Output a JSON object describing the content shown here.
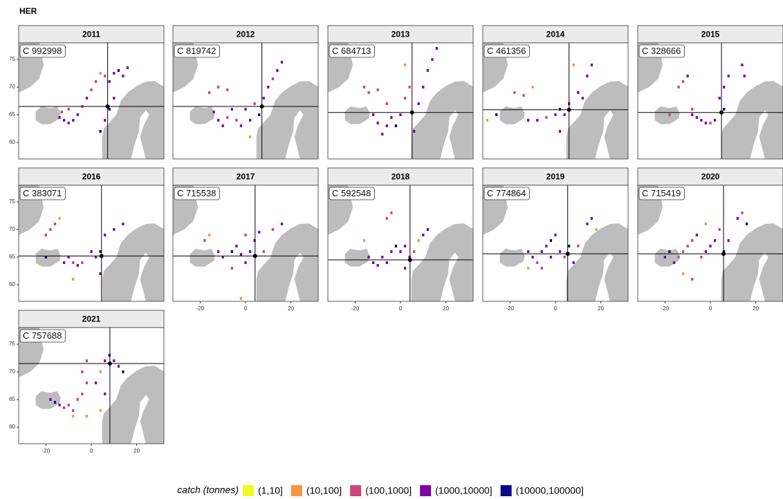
{
  "chart_data": {
    "type": "facet_map",
    "title": "HER",
    "xlim": [
      -32,
      32
    ],
    "ylim": [
      57,
      78
    ],
    "xticks": [
      -20,
      0,
      20
    ],
    "yticks": [
      60,
      65,
      70,
      75
    ],
    "legend": {
      "title": "catch (tonnes)",
      "levels": [
        {
          "label": "(1,10]",
          "color": "#f0f921"
        },
        {
          "label": "(10,100]",
          "color": "#f89540"
        },
        {
          "label": "(100,1000]",
          "color": "#cc4778"
        },
        {
          "label": "(1000,10000]",
          "color": "#7e03a8"
        },
        {
          "label": "(10000,100000]",
          "color": "#0d0887"
        }
      ]
    },
    "panels": [
      {
        "year": "2011",
        "label": "C 992998",
        "center": [
          7.2,
          66.5
        ],
        "cells": [
          [
            -14,
            64.5,
            3
          ],
          [
            -12,
            64,
            3
          ],
          [
            -10,
            63.5,
            3
          ],
          [
            -13,
            65.5,
            2
          ],
          [
            -8,
            64,
            3
          ],
          [
            -6,
            65,
            3
          ],
          [
            -4,
            66.5,
            2
          ],
          [
            -2,
            68,
            3
          ],
          [
            0,
            69.5,
            2
          ],
          [
            2,
            71,
            2
          ],
          [
            4,
            72.5,
            1
          ],
          [
            6,
            72,
            2
          ],
          [
            8,
            71,
            3
          ],
          [
            10,
            72.5,
            3
          ],
          [
            12,
            73,
            4
          ],
          [
            14,
            72,
            3
          ],
          [
            16,
            73.5,
            3
          ],
          [
            8,
            66,
            4
          ],
          [
            6,
            64,
            3
          ],
          [
            10,
            68,
            3
          ],
          [
            4,
            62,
            4
          ],
          [
            -10,
            66,
            2
          ]
        ]
      },
      {
        "year": "2012",
        "label": "C 819742",
        "center": [
          7.2,
          66.5
        ],
        "cells": [
          [
            -12,
            64,
            3
          ],
          [
            -10,
            63,
            3
          ],
          [
            -8,
            64.5,
            2
          ],
          [
            -14,
            65.5,
            3
          ],
          [
            -6,
            66,
            3
          ],
          [
            -4,
            64,
            2
          ],
          [
            -2,
            63,
            3
          ],
          [
            -16,
            69,
            2
          ],
          [
            -12,
            70,
            2
          ],
          [
            -8,
            69.5,
            2
          ],
          [
            0,
            66,
            3
          ],
          [
            2,
            64,
            3
          ],
          [
            4,
            67,
            2
          ],
          [
            8,
            68,
            3
          ],
          [
            10,
            70,
            3
          ],
          [
            14,
            73,
            3
          ],
          [
            16,
            74.5,
            3
          ],
          [
            12,
            71.5,
            2
          ],
          [
            6,
            65,
            4
          ],
          [
            2,
            61,
            1
          ]
        ]
      },
      {
        "year": "2013",
        "label": "C 684713",
        "center": [
          5.1,
          65.4
        ],
        "cells": [
          [
            -16,
            70,
            2
          ],
          [
            -14,
            69,
            2
          ],
          [
            -10,
            69.5,
            2
          ],
          [
            -12,
            65,
            3
          ],
          [
            -10,
            63.5,
            3
          ],
          [
            -6,
            63,
            3
          ],
          [
            -4,
            64.5,
            3
          ],
          [
            -2,
            63,
            4
          ],
          [
            0,
            65,
            3
          ],
          [
            -6,
            67,
            2
          ],
          [
            2,
            68,
            2
          ],
          [
            4,
            70,
            2
          ],
          [
            8,
            67,
            3
          ],
          [
            10,
            70,
            3
          ],
          [
            12,
            73,
            3
          ],
          [
            14,
            75,
            3
          ],
          [
            16,
            77,
            3
          ],
          [
            6,
            62,
            3
          ],
          [
            -8,
            61.5,
            3
          ],
          [
            2,
            74,
            1
          ]
        ]
      },
      {
        "year": "2014",
        "label": "C 461356",
        "center": [
          6.0,
          65.9
        ],
        "cells": [
          [
            -18,
            69,
            2
          ],
          [
            -14,
            68.5,
            2
          ],
          [
            -10,
            70,
            1
          ],
          [
            -12,
            64,
            3
          ],
          [
            -8,
            64,
            3
          ],
          [
            -4,
            64.5,
            2
          ],
          [
            0,
            65,
            3
          ],
          [
            2,
            66,
            4
          ],
          [
            4,
            65,
            3
          ],
          [
            6,
            67,
            3
          ],
          [
            10,
            69,
            3
          ],
          [
            14,
            72,
            3
          ],
          [
            16,
            74,
            3
          ],
          [
            8,
            74,
            1
          ],
          [
            -30,
            64,
            1
          ],
          [
            -26,
            65,
            4
          ],
          [
            2,
            62,
            3
          ],
          [
            12,
            68,
            3
          ]
        ]
      },
      {
        "year": "2015",
        "label": "C 328666",
        "center": [
          4.9,
          65.4
        ],
        "cells": [
          [
            -14,
            70,
            2
          ],
          [
            -12,
            71,
            2
          ],
          [
            -10,
            72,
            3
          ],
          [
            -8,
            65,
            3
          ],
          [
            -6,
            64.5,
            3
          ],
          [
            -4,
            64,
            3
          ],
          [
            -2,
            63.5,
            3
          ],
          [
            0,
            63.5,
            2
          ],
          [
            2,
            64,
            3
          ],
          [
            -8,
            66,
            2
          ],
          [
            4,
            68,
            3
          ],
          [
            6,
            70,
            3
          ],
          [
            8,
            72,
            3
          ],
          [
            14,
            74,
            3
          ],
          [
            15,
            72,
            3
          ],
          [
            6,
            66,
            4
          ],
          [
            -18,
            65,
            2
          ]
        ]
      },
      {
        "year": "2016",
        "label": "C 383071",
        "center": [
          4.5,
          65.2
        ],
        "cells": [
          [
            -20,
            69,
            2
          ],
          [
            -18,
            70,
            2
          ],
          [
            -16,
            71,
            2
          ],
          [
            -14,
            72,
            1
          ],
          [
            -12,
            64,
            3
          ],
          [
            -10,
            65,
            3
          ],
          [
            -8,
            64,
            2
          ],
          [
            -6,
            63.5,
            3
          ],
          [
            -4,
            64,
            2
          ],
          [
            0,
            66,
            3
          ],
          [
            2,
            65,
            3
          ],
          [
            4,
            66,
            4
          ],
          [
            6,
            69,
            3
          ],
          [
            10,
            70,
            3
          ],
          [
            14,
            71,
            3
          ],
          [
            -8,
            61,
            1
          ],
          [
            4,
            62,
            3
          ],
          [
            -20,
            65,
            4
          ]
        ]
      },
      {
        "year": "2017",
        "label": "C 715538",
        "center": [
          4.2,
          65.2
        ],
        "cells": [
          [
            -18,
            68,
            2
          ],
          [
            -16,
            69,
            1
          ],
          [
            -12,
            66,
            3
          ],
          [
            -10,
            65,
            3
          ],
          [
            -6,
            66,
            4
          ],
          [
            -4,
            67,
            3
          ],
          [
            -2,
            65.5,
            3
          ],
          [
            0,
            64,
            3
          ],
          [
            2,
            66,
            3
          ],
          [
            4,
            68,
            3
          ],
          [
            6,
            69.5,
            3
          ],
          [
            8,
            66,
            2
          ],
          [
            12,
            70,
            2
          ],
          [
            16,
            71,
            3
          ],
          [
            -6,
            63,
            2
          ],
          [
            -2,
            57.5,
            1
          ],
          [
            0,
            69,
            2
          ]
        ]
      },
      {
        "year": "2018",
        "label": "C 592548",
        "center": [
          4.2,
          64.5
        ],
        "cells": [
          [
            -16,
            68,
            1
          ],
          [
            -14,
            65,
            3
          ],
          [
            -12,
            64,
            3
          ],
          [
            -10,
            63.5,
            3
          ],
          [
            -8,
            65,
            3
          ],
          [
            -6,
            64,
            3
          ],
          [
            -4,
            66,
            3
          ],
          [
            -2,
            67,
            4
          ],
          [
            0,
            66,
            3
          ],
          [
            2,
            67,
            3
          ],
          [
            4,
            65,
            3
          ],
          [
            6,
            66,
            2
          ],
          [
            8,
            68,
            1
          ],
          [
            10,
            69,
            3
          ],
          [
            12,
            70,
            3
          ],
          [
            2,
            63,
            3
          ],
          [
            -6,
            72,
            2
          ],
          [
            -4,
            73,
            2
          ]
        ]
      },
      {
        "year": "2019",
        "label": "C 774864",
        "center": [
          5.4,
          65.6
        ],
        "cells": [
          [
            -12,
            66,
            3
          ],
          [
            -10,
            65,
            3
          ],
          [
            -8,
            64,
            2
          ],
          [
            -6,
            66,
            3
          ],
          [
            -4,
            67,
            3
          ],
          [
            -2,
            68,
            4
          ],
          [
            0,
            69,
            3
          ],
          [
            -2,
            65,
            3
          ],
          [
            2,
            66,
            3
          ],
          [
            4,
            65,
            2
          ],
          [
            -6,
            63,
            2
          ],
          [
            -12,
            63,
            1
          ],
          [
            8,
            64,
            3
          ],
          [
            6,
            67,
            4
          ],
          [
            10,
            67,
            2
          ],
          [
            14,
            71,
            3
          ],
          [
            16,
            72,
            3
          ],
          [
            18,
            70,
            1
          ]
        ]
      },
      {
        "year": "2020",
        "label": "C 715419",
        "center": [
          5.8,
          65.6
        ],
        "cells": [
          [
            -20,
            65,
            3
          ],
          [
            -18,
            66,
            4
          ],
          [
            -16,
            64,
            3
          ],
          [
            -14,
            65,
            2
          ],
          [
            -12,
            66,
            2
          ],
          [
            -10,
            67,
            2
          ],
          [
            -8,
            68,
            2
          ],
          [
            -6,
            69,
            3
          ],
          [
            -4,
            65,
            2
          ],
          [
            -2,
            66,
            3
          ],
          [
            0,
            67,
            3
          ],
          [
            2,
            68,
            3
          ],
          [
            4,
            70,
            2
          ],
          [
            -12,
            62,
            1
          ],
          [
            -8,
            61,
            2
          ],
          [
            6,
            66,
            4
          ],
          [
            8,
            68,
            3
          ],
          [
            12,
            72,
            3
          ],
          [
            16,
            71,
            4
          ],
          [
            -2,
            71,
            1
          ],
          [
            14,
            73,
            2
          ]
        ]
      },
      {
        "year": "2021",
        "label": "C 757688",
        "center": [
          8.2,
          71.5
        ],
        "cells": [
          [
            -18,
            65,
            3
          ],
          [
            -16,
            64.5,
            4
          ],
          [
            -14,
            64,
            3
          ],
          [
            -12,
            63.5,
            2
          ],
          [
            -10,
            64,
            2
          ],
          [
            -8,
            63,
            2
          ],
          [
            -8,
            62,
            1
          ],
          [
            -6,
            65,
            2
          ],
          [
            -4,
            66,
            2
          ],
          [
            -2,
            68,
            2
          ],
          [
            -4,
            70,
            2
          ],
          [
            -2,
            72,
            2
          ],
          [
            2,
            68,
            3
          ],
          [
            4,
            70,
            1
          ],
          [
            6,
            72,
            3
          ],
          [
            8,
            73,
            4
          ],
          [
            10,
            72,
            3
          ],
          [
            12,
            71,
            3
          ],
          [
            14,
            70,
            4
          ],
          [
            6,
            66,
            3
          ],
          [
            4,
            63,
            1
          ],
          [
            -2,
            62,
            1
          ]
        ]
      }
    ]
  }
}
